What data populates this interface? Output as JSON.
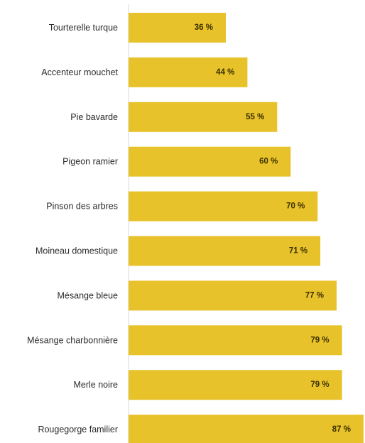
{
  "chart_data": {
    "type": "bar",
    "orientation": "horizontal",
    "categories": [
      "Tourterelle turque",
      "Accenteur mouchet",
      "Pie bavarde",
      "Pigeon ramier",
      "Pinson des arbres",
      "Moineau domestique",
      "Mésange bleue",
      "Mésange charbonnière",
      "Merle noire",
      "Rougegorge familier"
    ],
    "values": [
      36,
      44,
      55,
      60,
      70,
      71,
      77,
      79,
      79,
      87
    ],
    "value_labels": [
      "36 %",
      "44 %",
      "55 %",
      "60 %",
      "70 %",
      "71 %",
      "77 %",
      "79 %",
      "79 %",
      "87 %"
    ],
    "xlim": [
      0,
      87
    ],
    "title": "",
    "xlabel": "",
    "ylabel": "",
    "grid": false,
    "legend": "none",
    "colors": {
      "bar": "#E8C22A",
      "axis": "#d9d9d9"
    }
  }
}
